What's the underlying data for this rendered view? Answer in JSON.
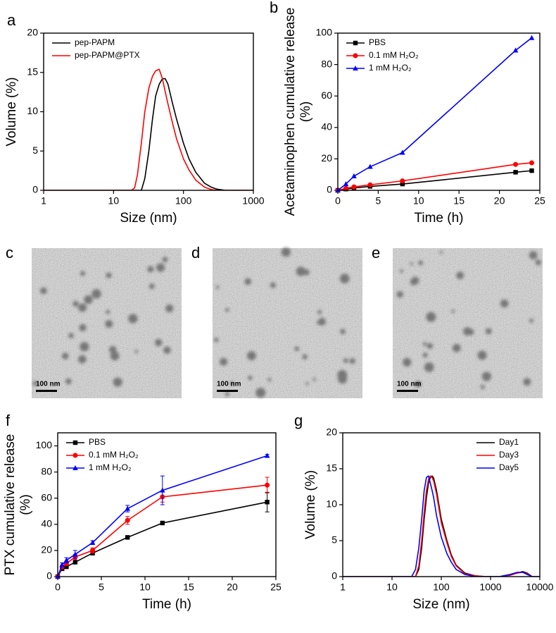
{
  "chart_data": [
    {
      "type": "line",
      "label": "a",
      "xlabel": "Size (nm)",
      "ylabel": [
        "Volume (%)"
      ],
      "xscale": "log",
      "xlim": [
        1,
        1000
      ],
      "xticks": [
        1,
        10,
        100,
        1000
      ],
      "ylim": [
        0,
        20
      ],
      "yticks": [
        0,
        5,
        10,
        15,
        20
      ],
      "legend": "upper left",
      "x": [
        1,
        18,
        20,
        22,
        25,
        28,
        32,
        36,
        40,
        45,
        50,
        55,
        60,
        70,
        80,
        100,
        120,
        150,
        200,
        250,
        300,
        400,
        1000
      ],
      "series": [
        {
          "name": "pep-PAPM",
          "color": "#000000",
          "values": [
            0,
            0,
            0,
            0,
            0,
            1.5,
            5,
            9,
            12,
            13.5,
            14.2,
            14.2,
            13.5,
            11,
            9,
            6,
            4,
            2.3,
            0.9,
            0.4,
            0.15,
            0,
            0
          ]
        },
        {
          "name": "pep-PAPM@PTX",
          "color": "#ff0000",
          "values": [
            0,
            0,
            0.3,
            2,
            6,
            10,
            13,
            14.5,
            15.2,
            15.4,
            14.2,
            12.5,
            11,
            8.5,
            6.5,
            4,
            2.6,
            1.3,
            0.4,
            0.1,
            0,
            0,
            0
          ]
        }
      ]
    },
    {
      "type": "line",
      "label": "b",
      "xlabel": "Time (h)",
      "ylabel": [
        "Acetaminophen cumulative release",
        "(%)"
      ],
      "xlim": [
        0,
        25
      ],
      "xticks": [
        0,
        5,
        10,
        15,
        20,
        25
      ],
      "ylim": [
        0,
        100
      ],
      "yticks": [
        0,
        20,
        40,
        60,
        80,
        100
      ],
      "legend": "upper left",
      "x": [
        0,
        1,
        2,
        4,
        8,
        22,
        24
      ],
      "series": [
        {
          "name": "PBS",
          "color": "#000000",
          "marker": "square",
          "values": [
            0,
            0.8,
            1.5,
            2.5,
            4,
            11.5,
            12.5
          ]
        },
        {
          "name": "0.1 mM H₂O₂",
          "color": "#ff0000",
          "marker": "circle",
          "values": [
            0,
            1.2,
            2.2,
            3.5,
            6,
            16.5,
            17.5
          ]
        },
        {
          "name": "1 mM H₂O₂",
          "color": "#0000ff",
          "marker": "triangle",
          "values": [
            0,
            4,
            9,
            15,
            24,
            89,
            97
          ]
        }
      ]
    },
    {
      "type": "line",
      "label": "f",
      "xlabel": "Time (h)",
      "ylabel": [
        "PTX cumulative release",
        "(%)"
      ],
      "xlim": [
        0,
        25
      ],
      "xticks": [
        0,
        5,
        10,
        15,
        20,
        25
      ],
      "ylim": [
        0,
        110
      ],
      "yticks": [
        0,
        20,
        40,
        60,
        80,
        100
      ],
      "legend": "upper left",
      "x": [
        0,
        0.5,
        1,
        2,
        4,
        8,
        12,
        24
      ],
      "series": [
        {
          "name": "PBS",
          "color": "#000000",
          "marker": "square",
          "values": [
            0,
            6,
            7.5,
            11,
            18,
            30,
            41,
            57
          ],
          "errors": [
            0,
            1,
            1,
            1,
            1.5,
            1,
            1,
            7.5
          ]
        },
        {
          "name": "0.1 mM H₂O₂",
          "color": "#ff0000",
          "marker": "circle",
          "values": [
            0,
            7.5,
            10,
            15,
            20,
            43,
            61,
            70
          ],
          "errors": [
            0,
            1,
            1.5,
            2,
            2,
            3,
            4,
            6
          ]
        },
        {
          "name": "1 mM H₂O₂",
          "color": "#0000ff",
          "marker": "triangle",
          "values": [
            0,
            9,
            12.5,
            17,
            26,
            52,
            66,
            92.5
          ],
          "errors": [
            0,
            1.5,
            2,
            3,
            1.5,
            2.5,
            11,
            1
          ]
        }
      ]
    },
    {
      "type": "line",
      "label": "g",
      "xlabel": "Size (nm)",
      "ylabel": [
        "Volume (%)"
      ],
      "xscale": "log",
      "xlim": [
        1,
        10000
      ],
      "xticks": [
        1,
        10,
        100,
        1000,
        10000
      ],
      "ylim": [
        0,
        20
      ],
      "yticks": [
        0,
        5,
        10,
        15,
        20
      ],
      "legend": "upper right",
      "x": [
        1,
        25,
        30,
        35,
        40,
        45,
        50,
        55,
        60,
        65,
        70,
        80,
        100,
        130,
        160,
        200,
        300,
        500,
        800,
        1500,
        2500,
        3500,
        4500,
        5500,
        7000,
        10000
      ],
      "series": [
        {
          "name": "Day1",
          "color": "#000000",
          "values": [
            0,
            0,
            0,
            1,
            4,
            8,
            11,
            13,
            13.8,
            14,
            13.7,
            12,
            8,
            5,
            3,
            1.6,
            0.5,
            0.1,
            0,
            0,
            0.2,
            0.5,
            0.7,
            0.5,
            0,
            0
          ]
        },
        {
          "name": "Day3",
          "color": "#ff0000",
          "values": [
            0,
            0,
            0,
            1.5,
            5,
            9,
            12,
            13.5,
            14,
            13.8,
            13.3,
            11.5,
            7.5,
            4.7,
            2.8,
            1.5,
            0.4,
            0.1,
            0,
            0,
            0.2,
            0.5,
            0.6,
            0.4,
            0,
            0
          ]
        },
        {
          "name": "Day5",
          "color": "#0000ff",
          "values": [
            0,
            0,
            1,
            4,
            8,
            12,
            13.8,
            14,
            13,
            12,
            11,
            8.5,
            5.5,
            3.2,
            2,
            1,
            0.3,
            0,
            0,
            0,
            0.3,
            0.6,
            0.6,
            0.3,
            0,
            0
          ]
        }
      ]
    }
  ],
  "images": [
    {
      "label": "c",
      "scale_bar": "100 nm"
    },
    {
      "label": "d",
      "scale_bar": "100 nm"
    },
    {
      "label": "e",
      "scale_bar": "100 nm"
    }
  ]
}
